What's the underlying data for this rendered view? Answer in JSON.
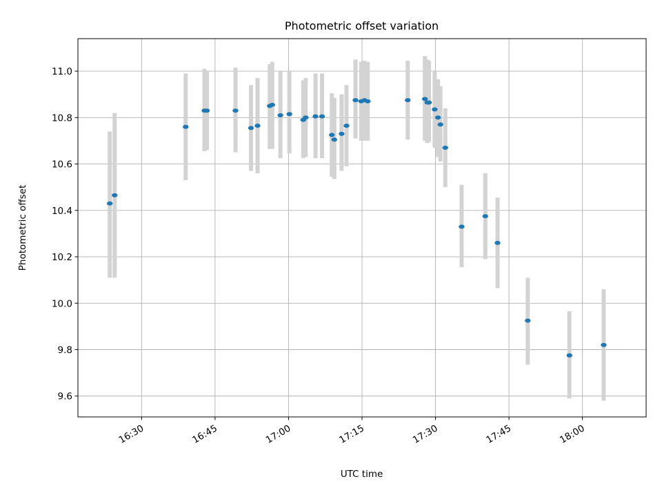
{
  "chart_data": {
    "type": "scatter",
    "title": "Photometric offset variation",
    "xlabel": "UTC time",
    "ylabel": "Photometric offset",
    "x_unit": "HH:MM UTC",
    "xlim": [
      "16:17",
      "18:13"
    ],
    "ylim": [
      9.51,
      11.14
    ],
    "x_ticks": [
      "16:30",
      "16:45",
      "17:00",
      "17:15",
      "17:30",
      "17:45",
      "18:00"
    ],
    "y_ticks": [
      9.6,
      9.8,
      10.0,
      10.2,
      10.4,
      10.6,
      10.8,
      11.0
    ],
    "y_tick_labels": [
      "9.6",
      "9.8",
      "10.0",
      "10.2",
      "10.4",
      "10.6",
      "10.8",
      "11.0"
    ],
    "grid": true,
    "marker_color": "#1f77b4",
    "errorbar_color": "#d3d3d3",
    "points": [
      {
        "t": "16:23:30",
        "y": 10.43,
        "lo": 10.11,
        "hi": 10.74
      },
      {
        "t": "16:24:30",
        "y": 10.465,
        "lo": 10.11,
        "hi": 10.82
      },
      {
        "t": "16:39:00",
        "y": 10.76,
        "lo": 10.53,
        "hi": 10.99
      },
      {
        "t": "16:42:50",
        "y": 10.83,
        "lo": 10.655,
        "hi": 11.01
      },
      {
        "t": "16:43:20",
        "y": 10.83,
        "lo": 10.66,
        "hi": 11.0
      },
      {
        "t": "16:49:10",
        "y": 10.83,
        "lo": 10.65,
        "hi": 11.015
      },
      {
        "t": "16:52:20",
        "y": 10.755,
        "lo": 10.57,
        "hi": 10.94
      },
      {
        "t": "16:53:40",
        "y": 10.765,
        "lo": 10.56,
        "hi": 10.97
      },
      {
        "t": "16:56:10",
        "y": 10.85,
        "lo": 10.665,
        "hi": 11.03
      },
      {
        "t": "16:56:40",
        "y": 10.855,
        "lo": 10.665,
        "hi": 11.04
      },
      {
        "t": "16:58:20",
        "y": 10.81,
        "lo": 10.625,
        "hi": 11.0
      },
      {
        "t": "17:00:10",
        "y": 10.815,
        "lo": 10.645,
        "hi": 11.0
      },
      {
        "t": "17:03:00",
        "y": 10.79,
        "lo": 10.625,
        "hi": 10.96
      },
      {
        "t": "17:03:30",
        "y": 10.8,
        "lo": 10.63,
        "hi": 10.97
      },
      {
        "t": "17:05:30",
        "y": 10.805,
        "lo": 10.625,
        "hi": 10.99
      },
      {
        "t": "17:06:50",
        "y": 10.805,
        "lo": 10.625,
        "hi": 10.99
      },
      {
        "t": "17:08:50",
        "y": 10.725,
        "lo": 10.545,
        "hi": 10.905
      },
      {
        "t": "17:09:20",
        "y": 10.705,
        "lo": 10.535,
        "hi": 10.885
      },
      {
        "t": "17:10:50",
        "y": 10.73,
        "lo": 10.57,
        "hi": 10.9
      },
      {
        "t": "17:11:50",
        "y": 10.765,
        "lo": 10.59,
        "hi": 10.94
      },
      {
        "t": "17:13:40",
        "y": 10.875,
        "lo": 10.71,
        "hi": 11.05
      },
      {
        "t": "17:14:50",
        "y": 10.87,
        "lo": 10.7,
        "hi": 11.04
      },
      {
        "t": "17:15:30",
        "y": 10.875,
        "lo": 10.7,
        "hi": 11.045
      },
      {
        "t": "17:16:10",
        "y": 10.87,
        "lo": 10.7,
        "hi": 11.04
      },
      {
        "t": "17:24:20",
        "y": 10.875,
        "lo": 10.705,
        "hi": 11.045
      },
      {
        "t": "17:27:50",
        "y": 10.88,
        "lo": 10.7,
        "hi": 11.065
      },
      {
        "t": "17:28:20",
        "y": 10.865,
        "lo": 10.69,
        "hi": 11.05
      },
      {
        "t": "17:28:40",
        "y": 10.865,
        "lo": 10.695,
        "hi": 11.045
      },
      {
        "t": "17:29:50",
        "y": 10.835,
        "lo": 10.67,
        "hi": 11.0
      },
      {
        "t": "17:30:30",
        "y": 10.8,
        "lo": 10.63,
        "hi": 10.965
      },
      {
        "t": "17:31:00",
        "y": 10.77,
        "lo": 10.61,
        "hi": 10.935
      },
      {
        "t": "17:32:00",
        "y": 10.67,
        "lo": 10.5,
        "hi": 10.84
      },
      {
        "t": "17:35:20",
        "y": 10.33,
        "lo": 10.155,
        "hi": 10.51
      },
      {
        "t": "17:40:10",
        "y": 10.375,
        "lo": 10.19,
        "hi": 10.56
      },
      {
        "t": "17:42:40",
        "y": 10.26,
        "lo": 10.065,
        "hi": 10.455
      },
      {
        "t": "17:48:50",
        "y": 9.925,
        "lo": 9.735,
        "hi": 10.11
      },
      {
        "t": "17:57:20",
        "y": 9.775,
        "lo": 9.59,
        "hi": 9.965
      },
      {
        "t": "18:04:20",
        "y": 9.82,
        "lo": 9.58,
        "hi": 10.06
      }
    ]
  }
}
